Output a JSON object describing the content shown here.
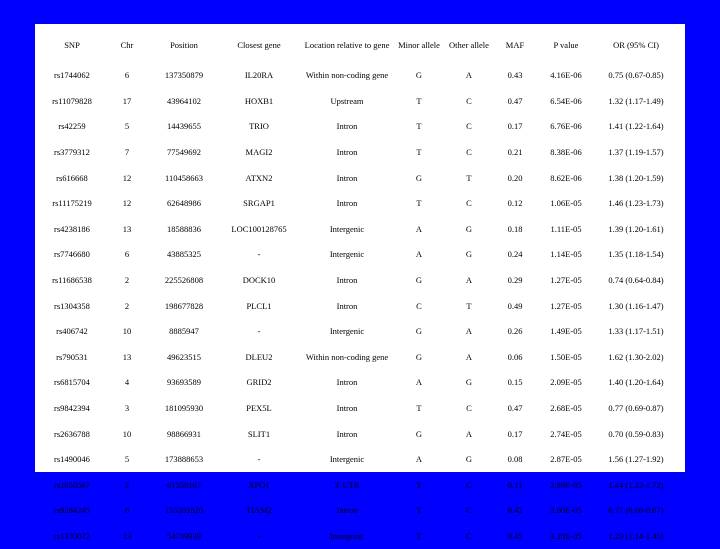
{
  "table": {
    "headers": [
      "SNP",
      "Chr",
      "Position",
      "Closest gene",
      "Location relative to gene",
      "Minor allele",
      "Other allele",
      "MAF",
      "P value",
      "OR (95% CI)"
    ],
    "rows": [
      [
        "rs1744062",
        "6",
        "137350879",
        "IL20RA",
        "Within non-coding gene",
        "G",
        "A",
        "0.43",
        "4.16E-06",
        "0.75 (0.67-0.85)"
      ],
      [
        "rs11079828",
        "17",
        "43964102",
        "HOXB1",
        "Upstream",
        "T",
        "C",
        "0.47",
        "6.54E-06",
        "1.32 (1.17-1.49)"
      ],
      [
        "rs42259",
        "5",
        "14439655",
        "TRIO",
        "Intron",
        "T",
        "C",
        "0.17",
        "6.76E-06",
        "1.41 (1.22-1.64)"
      ],
      [
        "rs3779312",
        "7",
        "77549692",
        "MAGI2",
        "Intron",
        "T",
        "C",
        "0.21",
        "8.38E-06",
        "1.37 (1.19-1.57)"
      ],
      [
        "rs616668",
        "12",
        "110458663",
        "ATXN2",
        "Intron",
        "G",
        "T",
        "0.20",
        "8.62E-06",
        "1.38 (1.20-1.59)"
      ],
      [
        "rs11175219",
        "12",
        "62648986",
        "SRGAP1",
        "Intron",
        "T",
        "C",
        "0.12",
        "1.06E-05",
        "1.46 (1.23-1.73)"
      ],
      [
        "rs4238186",
        "13",
        "18588836",
        "LOC100128765",
        "Intergenic",
        "A",
        "G",
        "0.18",
        "1.11E-05",
        "1.39 (1.20-1.61)"
      ],
      [
        "rs7746680",
        "6",
        "43885325",
        "-",
        "Intergenic",
        "A",
        "G",
        "0.24",
        "1.14E-05",
        "1.35 (1.18-1.54)"
      ],
      [
        "rs11686538",
        "2",
        "225526808",
        "DOCK10",
        "Intron",
        "G",
        "A",
        "0.29",
        "1.27E-05",
        "0.74 (0.64-0.84)"
      ],
      [
        "rs1304358",
        "2",
        "198677828",
        "PLCL1",
        "Intron",
        "C",
        "T",
        "0.49",
        "1.27E-05",
        "1.30 (1.16-1.47)"
      ],
      [
        "rs406742",
        "10",
        "8885947",
        "-",
        "Intergenic",
        "G",
        "A",
        "0.26",
        "1.49E-05",
        "1.33 (1.17-1.51)"
      ],
      [
        "rs790531",
        "13",
        "49623515",
        "DLEU2",
        "Within non-coding gene",
        "G",
        "A",
        "0.06",
        "1.50E-05",
        "1.62 (1.30-2.02)"
      ],
      [
        "rs6815704",
        "4",
        "93693589",
        "GRID2",
        "Intron",
        "A",
        "G",
        "0.15",
        "2.09E-05",
        "1.40 (1.20-1.64)"
      ],
      [
        "rs9842394",
        "3",
        "181095930",
        "PEX5L",
        "Intron",
        "T",
        "C",
        "0.47",
        "2.68E-05",
        "0.77 (0.69-0.87)"
      ],
      [
        "rs2636788",
        "10",
        "98866931",
        "SLIT1",
        "Intron",
        "G",
        "A",
        "0.17",
        "2.74E-05",
        "0.70 (0.59-0.83)"
      ],
      [
        "rs1490046",
        "5",
        "173888653",
        "-",
        "Intergenic",
        "A",
        "G",
        "0.08",
        "2.87E-05",
        "1.56 (1.27-1.92)"
      ],
      [
        "rs1050567",
        "2",
        "61559167",
        "XPO1",
        "3' UTR",
        "T",
        "C",
        "0.11",
        "2.89E-05",
        "1.44 (1.22-1.72)"
      ],
      [
        "rs9384245",
        "6",
        "155201820",
        "TIAM2",
        "Intron",
        "T",
        "C",
        "0.42",
        "3.00E-05",
        "0.77 (0.68-0.87)"
      ],
      [
        "rs1370072",
        "13",
        "54739939",
        "-",
        "Intergenic",
        "T",
        "C",
        "0.45",
        "3.28E-05",
        "1.29 (1.14-1.45)"
      ]
    ]
  },
  "colors": {
    "background": "#0000ff",
    "panel": "#ffffff",
    "text": "#000000"
  }
}
